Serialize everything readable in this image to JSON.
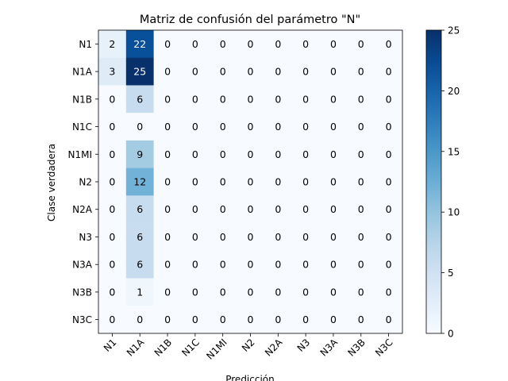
{
  "chart_data": {
    "type": "heatmap",
    "title": "Matriz de confusión del parámetro \"N\"",
    "xlabel": "Predicción",
    "ylabel": "Clase verdadera",
    "x_categories": [
      "N1",
      "N1A",
      "N1B",
      "N1C",
      "N1MI",
      "N2",
      "N2A",
      "N3",
      "N3A",
      "N3B",
      "N3C"
    ],
    "y_categories": [
      "N1",
      "N1A",
      "N1B",
      "N1C",
      "N1MI",
      "N2",
      "N2A",
      "N3",
      "N3A",
      "N3B",
      "N3C"
    ],
    "values": [
      [
        2,
        22,
        0,
        0,
        0,
        0,
        0,
        0,
        0,
        0,
        0
      ],
      [
        3,
        25,
        0,
        0,
        0,
        0,
        0,
        0,
        0,
        0,
        0
      ],
      [
        0,
        6,
        0,
        0,
        0,
        0,
        0,
        0,
        0,
        0,
        0
      ],
      [
        0,
        0,
        0,
        0,
        0,
        0,
        0,
        0,
        0,
        0,
        0
      ],
      [
        0,
        9,
        0,
        0,
        0,
        0,
        0,
        0,
        0,
        0,
        0
      ],
      [
        0,
        12,
        0,
        0,
        0,
        0,
        0,
        0,
        0,
        0,
        0
      ],
      [
        0,
        6,
        0,
        0,
        0,
        0,
        0,
        0,
        0,
        0,
        0
      ],
      [
        0,
        6,
        0,
        0,
        0,
        0,
        0,
        0,
        0,
        0,
        0
      ],
      [
        0,
        6,
        0,
        0,
        0,
        0,
        0,
        0,
        0,
        0,
        0
      ],
      [
        0,
        1,
        0,
        0,
        0,
        0,
        0,
        0,
        0,
        0,
        0
      ],
      [
        0,
        0,
        0,
        0,
        0,
        0,
        0,
        0,
        0,
        0,
        0
      ]
    ],
    "colormap": "Blues",
    "color_range": [
      0,
      25
    ],
    "colorbar_ticks": [
      "0",
      "5",
      "10",
      "15",
      "20",
      "25"
    ],
    "grid": false
  }
}
